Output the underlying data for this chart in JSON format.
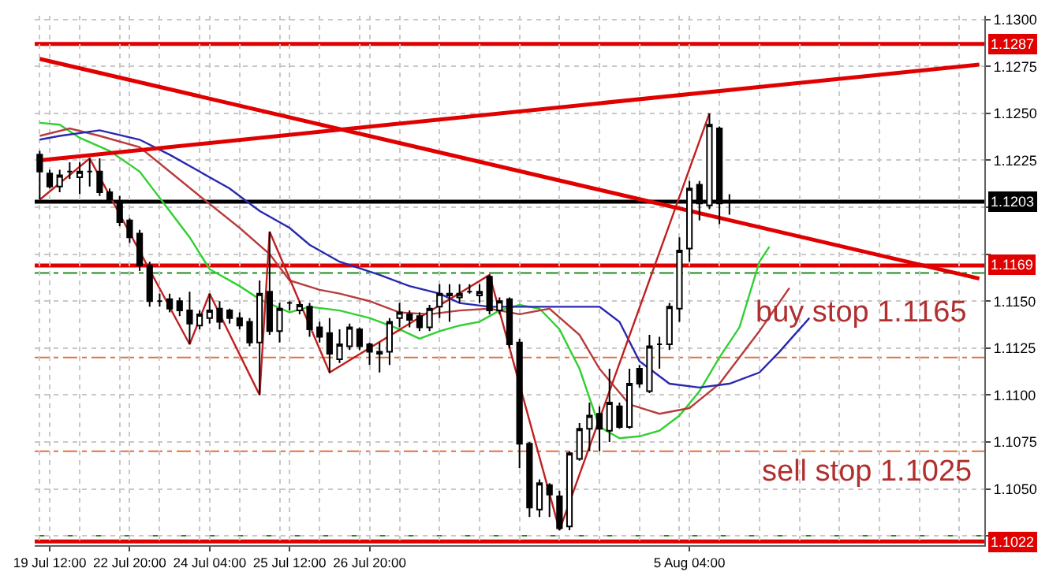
{
  "chart_data": {
    "type": "candlestick",
    "categories": [
      null,
      "19 Jul 12:00",
      null,
      null,
      null,
      null,
      null,
      null,
      null,
      "22 Jul 20:00",
      null,
      null,
      null,
      null,
      null,
      null,
      null,
      "24 Jul 04:00",
      null,
      null,
      null,
      null,
      null,
      null,
      null,
      "25 Jul 12:00",
      null,
      null,
      null,
      null,
      null,
      null,
      null,
      "26 Jul 20:00",
      null,
      null,
      null,
      null,
      null,
      null,
      null,
      null,
      null,
      null,
      null,
      null,
      null,
      null,
      null,
      null,
      null,
      null,
      null,
      null,
      null,
      null,
      null,
      null,
      null,
      null,
      null,
      null,
      null,
      null,
      null,
      "5 Aug 04:00",
      null,
      null,
      null,
      null,
      null,
      null,
      null,
      null,
      null,
      null,
      null,
      null,
      null,
      null,
      null,
      null,
      null,
      null,
      null,
      null,
      null,
      null,
      null,
      null,
      null,
      null,
      null,
      null,
      null
    ],
    "ohlc": [
      [
        1.1228,
        1.123,
        1.1204,
        1.1219
      ],
      [
        1.1218,
        1.122,
        1.121,
        1.1211
      ],
      [
        1.1211,
        1.122,
        1.1208,
        1.1217
      ],
      [
        1.1219,
        1.1224,
        1.1215,
        1.1219
      ],
      [
        1.1216,
        1.1224,
        1.1207,
        1.1219
      ],
      [
        1.1219,
        1.1226,
        1.1211,
        1.1219
      ],
      [
        1.1219,
        1.1226,
        1.1206,
        1.1208
      ],
      [
        1.1208,
        1.121,
        1.1202,
        1.1204
      ],
      [
        1.1203,
        1.1206,
        1.119,
        1.1192
      ],
      [
        1.1193,
        1.1194,
        1.1181,
        1.1184
      ],
      [
        1.1186,
        1.1188,
        1.1166,
        1.1169
      ],
      [
        1.1169,
        1.1171,
        1.1147,
        1.115
      ],
      [
        1.115,
        1.1154,
        1.1147,
        1.115
      ],
      [
        1.1151,
        1.1154,
        1.1144,
        1.1146
      ],
      [
        1.115,
        1.1152,
        1.1142,
        1.1145
      ],
      [
        1.1145,
        1.1155,
        1.1127,
        1.1138
      ],
      [
        1.1137,
        1.1145,
        1.1135,
        1.1143
      ],
      [
        1.1141,
        1.1154,
        1.1138,
        1.1145
      ],
      [
        1.1146,
        1.115,
        1.1135,
        1.1139
      ],
      [
        1.1145,
        1.1146,
        1.1138,
        1.1141
      ],
      [
        1.1141,
        1.1144,
        1.1135,
        1.1137
      ],
      [
        1.1139,
        1.1141,
        1.1126,
        1.1128
      ],
      [
        1.1128,
        1.1161,
        1.11,
        1.1154
      ],
      [
        1.1155,
        1.1187,
        1.1132,
        1.1134
      ],
      [
        1.1134,
        1.1149,
        1.1128,
        1.1146
      ],
      [
        1.1149,
        1.115,
        1.1145,
        1.1149
      ],
      [
        1.1145,
        1.115,
        1.1143,
        1.1148
      ],
      [
        1.1147,
        1.1149,
        1.1131,
        1.1135
      ],
      [
        1.1136,
        1.1139,
        1.1128,
        1.1131
      ],
      [
        1.1133,
        1.1141,
        1.1112,
        1.1122
      ],
      [
        1.1119,
        1.1135,
        1.1117,
        1.1127
      ],
      [
        1.1126,
        1.1138,
        1.1124,
        1.1136
      ],
      [
        1.1135,
        1.1136,
        1.1124,
        1.1126
      ],
      [
        1.1127,
        1.1128,
        1.1116,
        1.1123
      ],
      [
        1.1122,
        1.1128,
        1.1112,
        1.1123
      ],
      [
        1.1123,
        1.1141,
        1.1116,
        1.1139
      ],
      [
        1.1141,
        1.1149,
        1.1136,
        1.1144
      ],
      [
        1.1143,
        1.1145,
        1.1136,
        1.114
      ],
      [
        1.1142,
        1.1144,
        1.1134,
        1.1136
      ],
      [
        1.1136,
        1.1148,
        1.1134,
        1.1146
      ],
      [
        1.1147,
        1.1159,
        1.1141,
        1.1154
      ],
      [
        1.1153,
        1.1159,
        1.1139,
        1.1154
      ],
      [
        1.1152,
        1.1159,
        1.1149,
        1.1154
      ],
      [
        1.1155,
        1.1159,
        1.1154,
        1.1155
      ],
      [
        1.1153,
        1.1159,
        1.1149,
        1.1155
      ],
      [
        1.1163,
        1.1164,
        1.1143,
        1.1145
      ],
      [
        1.1145,
        1.1152,
        1.1143,
        1.115
      ],
      [
        1.1151,
        1.1152,
        1.1125,
        1.1127
      ],
      [
        1.1128,
        1.113,
        1.1061,
        1.1074
      ],
      [
        1.1074,
        1.1075,
        1.1035,
        1.104
      ],
      [
        1.1039,
        1.1055,
        1.1035,
        1.1053
      ],
      [
        1.1052,
        1.1053,
        1.1035,
        1.1047
      ],
      [
        1.1046,
        1.1049,
        1.1028,
        1.1029
      ],
      [
        1.103,
        1.107,
        1.1028,
        1.1069
      ],
      [
        1.1066,
        1.1085,
        1.1065,
        1.1082
      ],
      [
        1.1082,
        1.1096,
        1.107,
        1.1089
      ],
      [
        1.109,
        1.1094,
        1.107,
        1.1082
      ],
      [
        1.1081,
        1.1114,
        1.1075,
        1.1096
      ],
      [
        1.1094,
        1.1096,
        1.1082,
        1.1083
      ],
      [
        1.1083,
        1.1114,
        1.1082,
        1.1106
      ],
      [
        1.1114,
        1.1116,
        1.1104,
        1.1106
      ],
      [
        1.1102,
        1.1132,
        1.1101,
        1.1126
      ],
      [
        1.1127,
        1.1131,
        1.1114,
        1.1127
      ],
      [
        1.1127,
        1.1149,
        1.1124,
        1.1147
      ],
      [
        1.1146,
        1.1184,
        1.1139,
        1.1177
      ],
      [
        1.1178,
        1.1214,
        1.1171,
        1.121
      ],
      [
        1.1212,
        1.1214,
        1.1193,
        1.1202
      ],
      [
        1.1201,
        1.125,
        1.1199,
        1.1244
      ],
      [
        1.1242,
        1.1243,
        1.1191,
        1.1202
      ],
      [
        1.1203,
        1.1207,
        1.1196,
        1.1203
      ],
      null,
      null,
      null,
      null,
      null,
      null,
      null,
      null,
      null,
      null,
      null,
      null,
      null,
      null,
      null,
      null,
      null,
      null,
      null,
      null,
      null,
      null,
      null,
      null,
      null
    ],
    "series": [
      {
        "type": "line",
        "color": "#30d030",
        "values": [
          1.1245,
          null,
          1.1244,
          null,
          1.1237,
          null,
          null,
          1.123,
          null,
          null,
          1.1219,
          null,
          1.1205,
          null,
          null,
          1.1184,
          null,
          1.1167,
          null,
          null,
          1.1158,
          null,
          1.1151,
          null,
          null,
          1.1144,
          null,
          1.1147,
          null,
          null,
          1.1145,
          null,
          null,
          1.1141,
          null,
          null,
          1.1135,
          null,
          1.113,
          null,
          1.1134,
          null,
          1.1137,
          null,
          1.1139,
          null,
          1.1145,
          null,
          1.1148,
          null,
          1.1146,
          null,
          1.1135,
          null,
          1.1114,
          null,
          1.1083,
          null,
          1.1077,
          null,
          1.1078,
          null,
          1.1081,
          null,
          1.1089,
          null,
          1.1102,
          null,
          1.112,
          null,
          1.1136,
          null,
          1.1171,
          1.1179,
          null,
          null,
          null,
          null,
          null,
          null,
          null,
          null,
          null,
          null,
          null,
          null,
          null,
          null,
          null,
          null,
          null,
          null,
          null,
          null,
          null
        ]
      },
      {
        "type": "line",
        "color": "#b83c3c",
        "values": [
          1.1238,
          null,
          null,
          1.1242,
          null,
          null,
          1.1238,
          null,
          null,
          null,
          1.1232,
          null,
          null,
          1.1219,
          null,
          null,
          1.1206,
          null,
          null,
          null,
          1.1189,
          null,
          null,
          1.1175,
          null,
          1.1161,
          null,
          null,
          1.1156,
          null,
          1.1154,
          null,
          null,
          1.115,
          null,
          null,
          1.1144,
          null,
          null,
          1.1143,
          null,
          null,
          1.1145,
          null,
          null,
          1.1146,
          null,
          null,
          1.1143,
          null,
          null,
          1.1146,
          null,
          null,
          1.1132,
          null,
          1.1114,
          null,
          null,
          1.1095,
          null,
          null,
          1.109,
          null,
          null,
          1.1093,
          null,
          null,
          1.1106,
          null,
          1.112,
          null,
          1.1134,
          null,
          null,
          1.1157,
          null,
          null,
          null,
          null,
          null,
          null,
          null,
          null,
          null,
          null,
          null,
          null,
          null,
          null,
          null,
          null,
          null,
          null,
          null
        ]
      },
      {
        "type": "line",
        "color": "#2828b0",
        "values": [
          1.1236,
          null,
          1.1238,
          null,
          null,
          null,
          1.1241,
          null,
          null,
          null,
          1.1236,
          null,
          null,
          1.1228,
          null,
          null,
          1.1219,
          null,
          null,
          1.121,
          null,
          null,
          1.1198,
          null,
          null,
          1.1189,
          null,
          1.118,
          null,
          null,
          1.1171,
          null,
          null,
          null,
          1.1164,
          null,
          null,
          1.1158,
          null,
          null,
          1.1154,
          null,
          1.1149,
          null,
          null,
          1.1147,
          null,
          null,
          1.1147,
          null,
          null,
          null,
          1.1147,
          null,
          null,
          null,
          1.1147,
          null,
          1.1139,
          null,
          1.1118,
          null,
          null,
          1.1106,
          null,
          null,
          1.1104,
          null,
          null,
          1.1106,
          null,
          null,
          1.1112,
          null,
          1.1123,
          null,
          null,
          1.1141,
          null,
          null,
          null,
          null,
          null,
          null,
          null,
          null,
          null,
          null,
          null,
          null,
          null,
          null,
          null,
          null,
          null
        ]
      },
      {
        "type": "line",
        "color": "#c02020",
        "values": [
          1.1204,
          null,
          null,
          null,
          null,
          1.1226,
          null,
          null,
          null,
          null,
          null,
          null,
          null,
          null,
          null,
          1.1127,
          null,
          1.1154,
          null,
          null,
          null,
          null,
          1.11,
          1.1187,
          null,
          null,
          null,
          null,
          null,
          1.1112,
          null,
          null,
          null,
          null,
          null,
          null,
          null,
          null,
          null,
          null,
          null,
          null,
          null,
          null,
          null,
          1.1164,
          null,
          null,
          null,
          null,
          null,
          null,
          1.1028,
          null,
          null,
          null,
          null,
          null,
          null,
          null,
          null,
          null,
          null,
          null,
          null,
          null,
          null,
          1.125,
          null,
          null,
          null,
          null,
          null,
          null,
          null,
          null,
          null,
          null,
          null,
          null,
          null,
          null,
          null,
          null,
          null,
          null,
          null,
          null,
          null,
          null,
          null,
          null,
          null,
          null,
          null
        ]
      },
      {
        "type": "line",
        "color": "#e00000",
        "values": [
          1.1225,
          null,
          null,
          null,
          null,
          null,
          null,
          null,
          null,
          null,
          null,
          null,
          null,
          null,
          null,
          null,
          null,
          null,
          null,
          null,
          null,
          null,
          null,
          null,
          null,
          null,
          null,
          null,
          null,
          null,
          null,
          null,
          null,
          null,
          null,
          null,
          null,
          null,
          null,
          null,
          null,
          null,
          null,
          null,
          null,
          null,
          null,
          null,
          null,
          null,
          null,
          null,
          null,
          null,
          null,
          null,
          null,
          null,
          null,
          null,
          null,
          null,
          null,
          null,
          null,
          null,
          null,
          null,
          null,
          null,
          null,
          null,
          null,
          null,
          null,
          null,
          null,
          null,
          null,
          null,
          null,
          null,
          null,
          null,
          null,
          null,
          null,
          null,
          null,
          null,
          null,
          null,
          null,
          null,
          1.1276
        ]
      },
      {
        "type": "line",
        "color": "#e00000",
        "values": [
          1.1279,
          null,
          null,
          null,
          null,
          null,
          null,
          null,
          null,
          null,
          null,
          null,
          null,
          null,
          null,
          null,
          null,
          null,
          null,
          null,
          null,
          null,
          null,
          null,
          null,
          null,
          null,
          null,
          null,
          null,
          null,
          null,
          null,
          null,
          null,
          null,
          null,
          null,
          null,
          null,
          null,
          null,
          null,
          null,
          null,
          null,
          null,
          null,
          null,
          null,
          null,
          null,
          null,
          null,
          null,
          null,
          null,
          null,
          null,
          null,
          null,
          null,
          null,
          null,
          null,
          null,
          null,
          null,
          null,
          null,
          null,
          null,
          null,
          null,
          null,
          null,
          null,
          null,
          null,
          null,
          null,
          null,
          null,
          null,
          null,
          null,
          null,
          null,
          null,
          null,
          null,
          null,
          null,
          null,
          1.1162
        ]
      }
    ],
    "ylim": [
      1.102,
      1.1302
    ],
    "yticks": [
      {
        "value": 1.1025,
        "label": null
      },
      {
        "value": 1.105,
        "label": "1.1050"
      },
      {
        "value": 1.1075,
        "label": "1.1075"
      },
      {
        "value": 1.11,
        "label": "1.1100"
      },
      {
        "value": 1.1125,
        "label": "1.1125"
      },
      {
        "value": 1.115,
        "label": "1.1150"
      },
      {
        "value": 1.1175,
        "label": null
      },
      {
        "value": 1.12,
        "label": null
      },
      {
        "value": 1.1225,
        "label": "1.1225"
      },
      {
        "value": 1.125,
        "label": "1.1250"
      },
      {
        "value": 1.1275,
        "label": "1.1275"
      },
      {
        "value": 1.13,
        "label": "1.1300"
      }
    ],
    "ref_lines": [
      {
        "axis": "y",
        "value": 1.1287,
        "label": "1.1287",
        "color": "#e00000",
        "line_style": "solid"
      },
      {
        "axis": "y",
        "value": 1.1203,
        "label": "1.1203",
        "color": "#000000",
        "line_style": "solid"
      },
      {
        "axis": "y",
        "value": 1.1169,
        "label": "1.1169",
        "color": "#e00000",
        "line_style": "solid"
      },
      {
        "axis": "y",
        "value": 1.1022,
        "label": "1.1022",
        "color": "#e00000",
        "line_style": "solid"
      },
      {
        "axis": "y",
        "value": 1.1165,
        "color": "#208a20",
        "line_style": "dashed"
      },
      {
        "axis": "y",
        "value": 1.1025,
        "color": "#208a20",
        "line_style": "dashed"
      },
      {
        "axis": "y",
        "value": 1.112,
        "color": "#e07040",
        "line_style": "dashed"
      },
      {
        "axis": "y",
        "value": 1.107,
        "color": "#e07040",
        "line_style": "dashed"
      }
    ],
    "annotations": [
      "buy stop 1.1165",
      "sell stop 1.1025"
    ],
    "grid": true
  }
}
